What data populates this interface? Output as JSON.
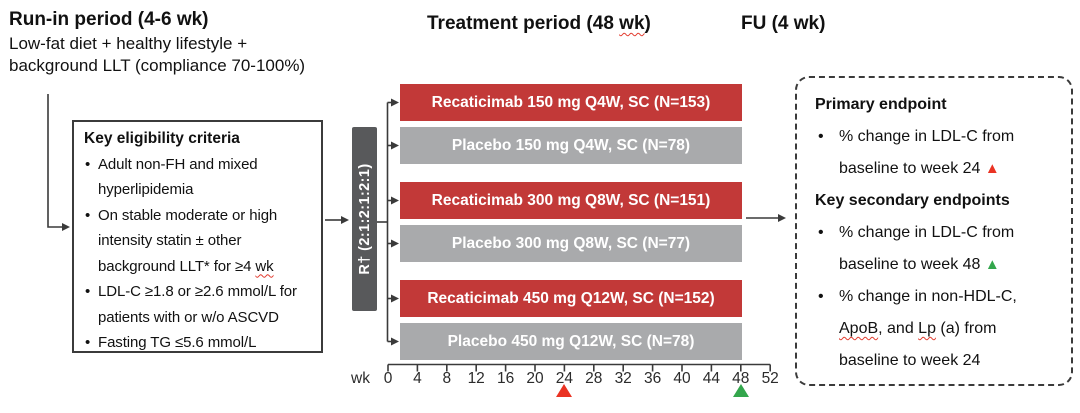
{
  "colors": {
    "active_arm_red": "#C23938",
    "placebo_arm_gray": "#A9AAAC",
    "randomization_gray": "#58595B",
    "primary_marker_red": "#EA3323",
    "secondary_marker_green": "#33A64C"
  },
  "header": {
    "run_in_title": "Run-in period (4-6 wk)",
    "run_in_lines": [
      "Low-fat diet + healthy lifestyle +",
      "background LLT (compliance 70-100%)"
    ],
    "treatment_title": "Treatment period (48 [[wk]])",
    "fu_title": "FU (4 wk)"
  },
  "eligibility": {
    "title": "Key eligibility criteria",
    "items": [
      "Adult non-FH and mixed hyperlipidemia",
      "On stable moderate or high intensity statin ± other background LLT* for ≥4 [[wk]]",
      "LDL-C ≥1.8 or ≥2.6 mmol/L for patients with or w/o ASCVD",
      "Fasting TG ≤5.6 mmol/L"
    ]
  },
  "randomization": {
    "label": "R† (2:1:2:1:2:1)"
  },
  "arms": [
    {
      "label": "Recaticimab 150 mg Q4W, SC (N=153)",
      "type": "active"
    },
    {
      "label": "Placebo 150 mg Q4W, SC (N=78)",
      "type": "placebo"
    },
    {
      "label": "Recaticimab 300 mg Q8W, SC (N=151)",
      "type": "active"
    },
    {
      "label": "Placebo 300 mg Q8W, SC (N=77)",
      "type": "placebo"
    },
    {
      "label": "Recaticimab 450 mg Q12W, SC (N=152)",
      "type": "active"
    },
    {
      "label": "Placebo 450 mg Q12W, SC (N=78)",
      "type": "placebo"
    }
  ],
  "timeline": {
    "unit_label": "wk",
    "ticks": [
      0,
      4,
      8,
      12,
      16,
      20,
      24,
      28,
      32,
      36,
      40,
      44,
      48,
      52
    ],
    "primary_marker_week": 24,
    "secondary_marker_week": 48
  },
  "endpoints": {
    "primary_title": "Primary endpoint",
    "primary_items": [
      "% change in LDL-C from baseline to week 24 {{tri-red}}"
    ],
    "secondary_title": "Key secondary endpoints",
    "secondary_items": [
      "% change in LDL-C from baseline to week 48 {{tri-green}}",
      "% change in non-HDL-C, [[ApoB]], and [[Lp]] (a) from baseline to week 24"
    ]
  }
}
